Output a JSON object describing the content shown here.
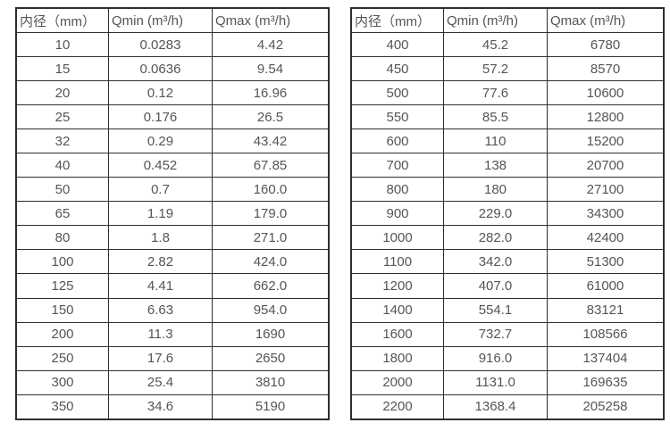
{
  "page": {
    "background_color": "#ffffff",
    "border_color": "#2e2e2e",
    "text_color": "#555555",
    "description": "Flow meter inner-diameter vs minimum and maximum flow rate specification tables"
  },
  "tables": [
    {
      "name": "small-diameter-flow-table",
      "headers": [
        "内径（mm）",
        "Qmin (m³/h)",
        "Qmax (m³/h)"
      ],
      "rows": [
        [
          "10",
          "0.0283",
          "4.42"
        ],
        [
          "15",
          "0.0636",
          "9.54"
        ],
        [
          "20",
          "0.12",
          "16.96"
        ],
        [
          "25",
          "0.176",
          "26.5"
        ],
        [
          "32",
          "0.29",
          "43.42"
        ],
        [
          "40",
          "0.452",
          "67.85"
        ],
        [
          "50",
          "0.7",
          "160.0"
        ],
        [
          "65",
          "1.19",
          "179.0"
        ],
        [
          "80",
          "1.8",
          "271.0"
        ],
        [
          "100",
          "2.82",
          "424.0"
        ],
        [
          "125",
          "4.41",
          "662.0"
        ],
        [
          "150",
          "6.63",
          "954.0"
        ],
        [
          "200",
          "11.3",
          "1690"
        ],
        [
          "250",
          "17.6",
          "2650"
        ],
        [
          "300",
          "25.4",
          "3810"
        ],
        [
          "350",
          "34.6",
          "5190"
        ]
      ]
    },
    {
      "name": "large-diameter-flow-table",
      "headers": [
        "内径（mm）",
        "Qmin (m³/h)",
        "Qmax (m³/h)"
      ],
      "rows": [
        [
          "400",
          "45.2",
          "6780"
        ],
        [
          "450",
          "57.2",
          "8570"
        ],
        [
          "500",
          "77.6",
          "10600"
        ],
        [
          "550",
          "85.5",
          "12800"
        ],
        [
          "600",
          "110",
          "15200"
        ],
        [
          "700",
          "138",
          "20700"
        ],
        [
          "800",
          "180",
          "27100"
        ],
        [
          "900",
          "229.0",
          "34300"
        ],
        [
          "1000",
          "282.0",
          "42400"
        ],
        [
          "1100",
          "342.0",
          "51300"
        ],
        [
          "1200",
          "407.0",
          "61000"
        ],
        [
          "1400",
          "554.1",
          "83121"
        ],
        [
          "1600",
          "732.7",
          "108566"
        ],
        [
          "1800",
          "916.0",
          "137404"
        ],
        [
          "2000",
          "1131.0",
          "169635"
        ],
        [
          "2200",
          "1368.4",
          "205258"
        ]
      ]
    }
  ]
}
